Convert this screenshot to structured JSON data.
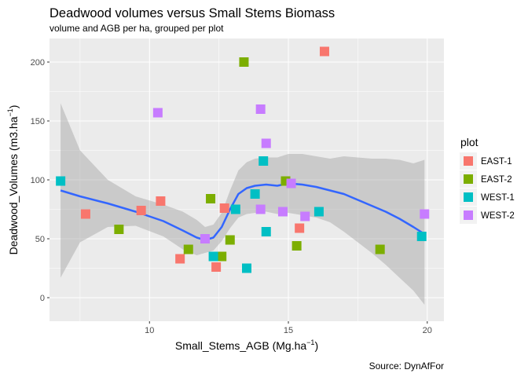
{
  "chart_data": {
    "type": "scatter",
    "title": "Deadwood volumes versus Small Stems Biomass",
    "subtitle": "volume and AGB per ha, grouped per plot",
    "caption": "Source: DynAfFor",
    "xlabel_main": "Small_Stems_AGB (Mg.ha",
    "xlabel_sup": "−1",
    "xlabel_end": ")",
    "ylabel_main": "Deadwood_Volumes (m3.ha",
    "ylabel_sup": "−1",
    "ylabel_end": ")",
    "xlim": [
      6.4,
      20.6
    ],
    "ylim": [
      -20,
      220
    ],
    "x_ticks": [
      10,
      15,
      20
    ],
    "y_ticks": [
      0,
      50,
      100,
      150,
      200
    ],
    "grid": true,
    "panel_color": "#ebebeb",
    "legend_title": "plot",
    "legend_position": "right",
    "series": [
      {
        "name": "EAST-1",
        "color": "#F8766D",
        "points": [
          [
            7.7,
            71
          ],
          [
            9.7,
            74
          ],
          [
            10.4,
            82
          ],
          [
            11.1,
            33
          ],
          [
            12.4,
            26
          ],
          [
            12.7,
            76
          ],
          [
            15.4,
            59
          ],
          [
            16.3,
            209
          ]
        ]
      },
      {
        "name": "EAST-2",
        "color": "#7CAE00",
        "points": [
          [
            8.9,
            58
          ],
          [
            11.4,
            41
          ],
          [
            12.2,
            84
          ],
          [
            12.6,
            35
          ],
          [
            12.9,
            49
          ],
          [
            13.4,
            200
          ],
          [
            14.9,
            99
          ],
          [
            15.3,
            44
          ],
          [
            18.3,
            41
          ]
        ]
      },
      {
        "name": "WEST-1",
        "color": "#00BFC4",
        "points": [
          [
            6.8,
            99
          ],
          [
            12.3,
            35
          ],
          [
            13.1,
            75
          ],
          [
            13.5,
            25
          ],
          [
            13.8,
            88
          ],
          [
            14.1,
            116
          ],
          [
            14.2,
            56
          ],
          [
            16.1,
            73
          ],
          [
            19.8,
            52
          ]
        ]
      },
      {
        "name": "WEST-2",
        "color": "#C77CFF",
        "points": [
          [
            10.3,
            157
          ],
          [
            12.0,
            50
          ],
          [
            14.0,
            75
          ],
          [
            14.0,
            160
          ],
          [
            14.2,
            131
          ],
          [
            14.8,
            73
          ],
          [
            15.1,
            97
          ],
          [
            15.6,
            69
          ],
          [
            19.9,
            71
          ]
        ]
      }
    ],
    "smooth": {
      "color": "#3366FF",
      "band_color": "#999999",
      "x": [
        6.8,
        7.5,
        8.5,
        9.5,
        10.5,
        11.2,
        11.7,
        12.0,
        12.3,
        12.6,
        12.9,
        13.2,
        13.5,
        13.8,
        14.2,
        14.6,
        15.0,
        15.5,
        16.0,
        16.5,
        17.0,
        17.5,
        18.0,
        18.5,
        19.0,
        19.5,
        19.9
      ],
      "y": [
        91,
        86,
        80,
        73,
        65,
        57,
        51,
        49,
        51,
        60,
        75,
        88,
        93,
        95,
        96,
        95,
        97,
        96,
        94,
        91,
        88,
        83,
        78,
        73,
        67,
        60,
        54
      ],
      "lower": [
        17,
        47,
        60,
        61,
        52,
        41,
        36,
        38,
        40,
        48,
        59,
        68,
        71,
        72,
        73,
        71,
        72,
        70,
        68,
        64,
        56,
        47,
        38,
        28,
        17,
        6,
        -6
      ],
      "upper": [
        165,
        125,
        100,
        86,
        79,
        73,
        66,
        60,
        62,
        72,
        91,
        108,
        115,
        118,
        119,
        119,
        122,
        122,
        120,
        118,
        120,
        119,
        118,
        118,
        117,
        114,
        117
      ]
    }
  }
}
